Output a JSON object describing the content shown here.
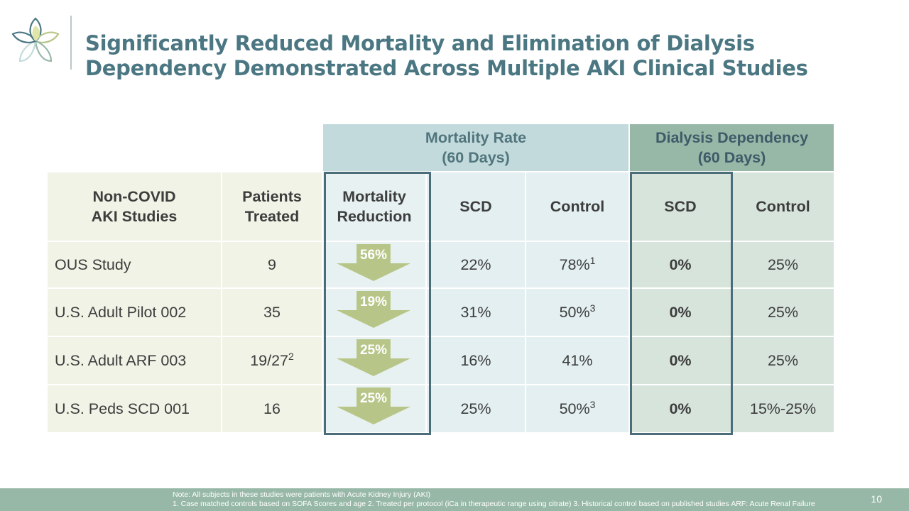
{
  "colors": {
    "title": "#4b7783",
    "mortality_header": "#c3dadc",
    "dialysis_header": "#97b8a7",
    "arrow": "#b7c688",
    "footer": "#97b8a7",
    "highlight_border": "#4b6d79"
  },
  "title": {
    "line1": "Significantly Reduced Mortality and Elimination of Dialysis",
    "line2": "Dependency Demonstrated Across Multiple AKI Clinical Studies"
  },
  "table": {
    "group_headers": {
      "mortality_line1": "Mortality Rate",
      "mortality_line2": "(60 Days)",
      "dialysis_line1": "Dialysis Dependency",
      "dialysis_line2": "(60 Days)"
    },
    "columns": {
      "study_line1": "Non-COVID",
      "study_line2": "AKI Studies",
      "patients_line1": "Patients",
      "patients_line2": "Treated",
      "reduction_line1": "Mortality",
      "reduction_line2": "Reduction",
      "mort_scd": "SCD",
      "mort_control": "Control",
      "dial_scd": "SCD",
      "dial_control": "Control"
    },
    "rows": [
      {
        "study": "OUS Study",
        "patients": "9",
        "patients_sup": "",
        "reduction": "56%",
        "mort_scd": "22%",
        "mort_control": "78%",
        "mort_control_sup": "1",
        "dial_scd": "0%",
        "dial_control": "25%"
      },
      {
        "study": "U.S. Adult Pilot 002",
        "patients": "35",
        "patients_sup": "",
        "reduction": "19%",
        "mort_scd": "31%",
        "mort_control": "50%",
        "mort_control_sup": "3",
        "dial_scd": "0%",
        "dial_control": "25%"
      },
      {
        "study": "U.S. Adult ARF 003",
        "patients": "19/27",
        "patients_sup": "2",
        "reduction": "25%",
        "mort_scd": "16%",
        "mort_control": "41%",
        "mort_control_sup": "",
        "dial_scd": "0%",
        "dial_control": "25%"
      },
      {
        "study": "U.S. Peds SCD 001",
        "patients": "16",
        "patients_sup": "",
        "reduction": "25%",
        "mort_scd": "25%",
        "mort_control": "50%",
        "mort_control_sup": "3",
        "dial_scd": "0%",
        "dial_control": "15%-25%"
      }
    ]
  },
  "footer": {
    "note_line1": "Note: All subjects in these studies were patients with  Acute Kidney Injury (AKI)",
    "note_line2": "1. Case matched controls based on SOFA Scores and age  2. Treated per protocol (iCa in therapeutic range using citrate)  3. Historical control based on published studies  ARF: Acute Renal Failure",
    "page_number": "10"
  }
}
